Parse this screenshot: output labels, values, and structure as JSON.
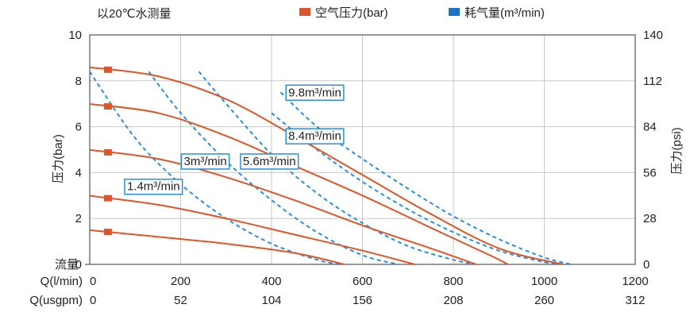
{
  "chart_data": {
    "type": "line",
    "title": "以20℃水测量",
    "legend": {
      "placement": "top-center",
      "items": [
        {
          "name": "空气压力(bar)",
          "color": "#d9572b"
        },
        {
          "name": "耗气量(m³/min)",
          "color": "#1a73c9"
        }
      ]
    },
    "x_axis": {
      "label": "流量",
      "primary": {
        "unit_label": "Q(l/min)",
        "range": [
          0,
          1200
        ],
        "ticks": [
          "0",
          "200",
          "400",
          "600",
          "800",
          "1000",
          "1200"
        ]
      },
      "secondary": {
        "unit_label": "Q(usgpm)",
        "ticks": [
          "0",
          "52",
          "104",
          "156",
          "208",
          "260",
          "312"
        ]
      }
    },
    "y_axis_left": {
      "label": "压力(bar)",
      "range": [
        0,
        10
      ],
      "ticks": [
        "0",
        "2",
        "4",
        "6",
        "8",
        "10"
      ]
    },
    "y_axis_right": {
      "label": "压力(psi)",
      "range": [
        0,
        140
      ],
      "ticks": [
        "0",
        "28",
        "56",
        "84",
        "112",
        "140"
      ]
    },
    "grid": true,
    "pressure_series": [
      {
        "name": "air-pressure-8.5bar",
        "marker_x": 40,
        "points": [
          [
            -5,
            8.6
          ],
          [
            150,
            8.2
          ],
          [
            300,
            7.2
          ],
          [
            450,
            5.6
          ],
          [
            600,
            3.9
          ],
          [
            750,
            2.2
          ],
          [
            900,
            0.7
          ],
          [
            1040,
            0
          ]
        ]
      },
      {
        "name": "air-pressure-7bar",
        "marker_x": 40,
        "points": [
          [
            -5,
            7.0
          ],
          [
            150,
            6.6
          ],
          [
            300,
            5.6
          ],
          [
            450,
            4.3
          ],
          [
            600,
            3.0
          ],
          [
            750,
            1.6
          ],
          [
            880,
            0.4
          ],
          [
            920,
            0
          ]
        ]
      },
      {
        "name": "air-pressure-5bar",
        "marker_x": 40,
        "points": [
          [
            -5,
            5.0
          ],
          [
            150,
            4.6
          ],
          [
            300,
            3.8
          ],
          [
            450,
            2.8
          ],
          [
            600,
            1.7
          ],
          [
            750,
            0.7
          ],
          [
            850,
            0
          ]
        ]
      },
      {
        "name": "air-pressure-3bar",
        "marker_x": 40,
        "points": [
          [
            -5,
            3.0
          ],
          [
            150,
            2.6
          ],
          [
            300,
            2.0
          ],
          [
            450,
            1.3
          ],
          [
            600,
            0.6
          ],
          [
            715,
            0
          ]
        ]
      },
      {
        "name": "air-pressure-1.5bar",
        "marker_x": 40,
        "points": [
          [
            -5,
            1.5
          ],
          [
            150,
            1.2
          ],
          [
            300,
            0.9
          ],
          [
            450,
            0.5
          ],
          [
            560,
            0
          ]
        ]
      }
    ],
    "consumption_series": [
      {
        "label": "1.4m³/min",
        "points": [
          [
            0,
            8.4
          ],
          [
            100,
            5.5
          ],
          [
            200,
            3.5
          ],
          [
            300,
            2.0
          ],
          [
            400,
            0.9
          ],
          [
            500,
            0.2
          ],
          [
            550,
            0
          ]
        ]
      },
      {
        "label": "3m³/min",
        "points": [
          [
            130,
            8.4
          ],
          [
            200,
            6.6
          ],
          [
            300,
            4.5
          ],
          [
            400,
            2.8
          ],
          [
            500,
            1.4
          ],
          [
            600,
            0.4
          ],
          [
            680,
            0
          ]
        ]
      },
      {
        "label": "5.6m³/min",
        "points": [
          [
            240,
            8.4
          ],
          [
            300,
            7.0
          ],
          [
            400,
            4.8
          ],
          [
            500,
            3.1
          ],
          [
            600,
            1.8
          ],
          [
            700,
            0.8
          ],
          [
            800,
            0.2
          ],
          [
            850,
            0
          ]
        ]
      },
      {
        "label": "8.4m³/min",
        "points": [
          [
            400,
            6.6
          ],
          [
            500,
            5.0
          ],
          [
            600,
            3.6
          ],
          [
            700,
            2.4
          ],
          [
            800,
            1.4
          ],
          [
            900,
            0.6
          ],
          [
            1000,
            0.1
          ],
          [
            1050,
            0
          ]
        ]
      },
      {
        "label": "9.8m³/min",
        "points": [
          [
            420,
            7.5
          ],
          [
            500,
            6.0
          ],
          [
            600,
            4.6
          ],
          [
            700,
            3.3
          ],
          [
            800,
            2.1
          ],
          [
            900,
            1.1
          ],
          [
            1000,
            0.3
          ],
          [
            1060,
            0
          ]
        ]
      }
    ],
    "annotations": [
      {
        "text": "9.8m³/min",
        "x": 430,
        "y": 7.5
      },
      {
        "text": "8.4m³/min",
        "x": 430,
        "y": 5.6
      },
      {
        "text": "3m³/min",
        "x": 200,
        "y": 4.5
      },
      {
        "text": "5.6m³/min",
        "x": 330,
        "y": 4.5
      },
      {
        "text": "1.4m³/min",
        "x": 75,
        "y": 3.4
      }
    ]
  }
}
